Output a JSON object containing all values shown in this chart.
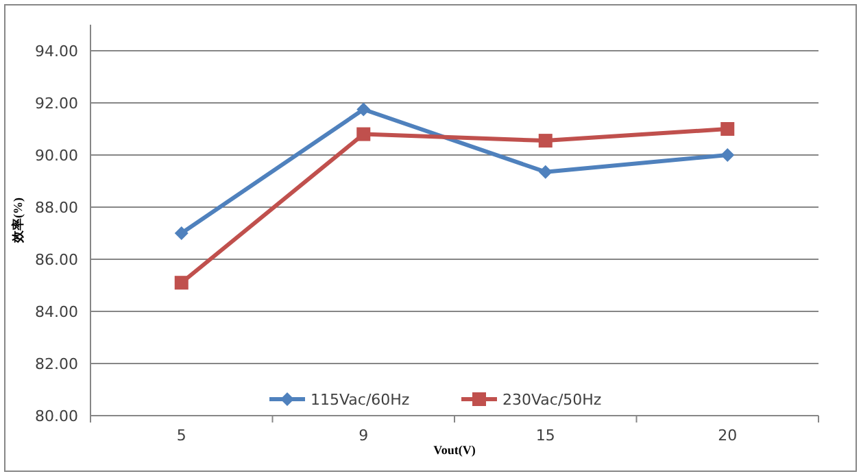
{
  "chart_data": {
    "type": "line",
    "xlabel": "Vout(V)",
    "ylabel": "效率(%)",
    "categories": [
      "5",
      "9",
      "15",
      "20"
    ],
    "series": [
      {
        "name": "115Vac/60Hz",
        "color": "#4f81bd",
        "marker": "diamond",
        "values": [
          87.0,
          91.75,
          89.35,
          90.0
        ]
      },
      {
        "name": "230Vac/50Hz",
        "color": "#c0504d",
        "marker": "square",
        "values": [
          85.1,
          90.8,
          90.55,
          91.0
        ]
      }
    ],
    "ylim": [
      80,
      95
    ],
    "yticks": [
      {
        "value": 80,
        "label": "80.00"
      },
      {
        "value": 82,
        "label": "82.00"
      },
      {
        "value": 84,
        "label": "84.00"
      },
      {
        "value": 86,
        "label": "86.00"
      },
      {
        "value": 88,
        "label": "88.00"
      },
      {
        "value": 90,
        "label": "90.00"
      },
      {
        "value": 92,
        "label": "92.00"
      },
      {
        "value": 94,
        "label": "94.00"
      }
    ],
    "grid": "y",
    "legend": "bottom",
    "line_style": "solid"
  }
}
